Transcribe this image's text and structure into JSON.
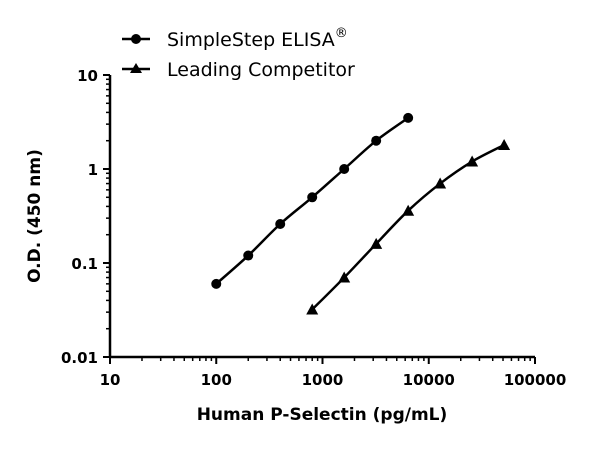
{
  "chart_data": {
    "type": "line",
    "title": "",
    "xlabel": "Human P-Selectin (pg/mL)",
    "ylabel": "O.D. (450 nm)",
    "xscale": "log",
    "yscale": "log",
    "xlim": [
      10,
      100000
    ],
    "ylim": [
      0.01,
      10
    ],
    "xticks": [
      10,
      100,
      1000,
      10000,
      100000
    ],
    "xtick_labels": [
      "10",
      "100",
      "1000",
      "10000",
      "100000"
    ],
    "yticks": [
      0.01,
      0.1,
      1,
      10
    ],
    "ytick_labels": [
      "0.01",
      "0.1",
      "1",
      "10"
    ],
    "grid": false,
    "legend_position": "top-left",
    "series": [
      {
        "name": "SimpleStep ELISA",
        "superscript": "®",
        "marker": "circle",
        "x": [
          100,
          200,
          400,
          800,
          1600,
          3200,
          6400
        ],
        "y": [
          0.06,
          0.12,
          0.26,
          0.5,
          1.0,
          2.0,
          3.5
        ]
      },
      {
        "name": "Leading Competitor",
        "marker": "triangle",
        "x": [
          800,
          1600,
          3200,
          6400,
          12800,
          25600,
          51200
        ],
        "y": [
          0.032,
          0.07,
          0.16,
          0.36,
          0.7,
          1.2,
          1.8
        ]
      }
    ]
  }
}
